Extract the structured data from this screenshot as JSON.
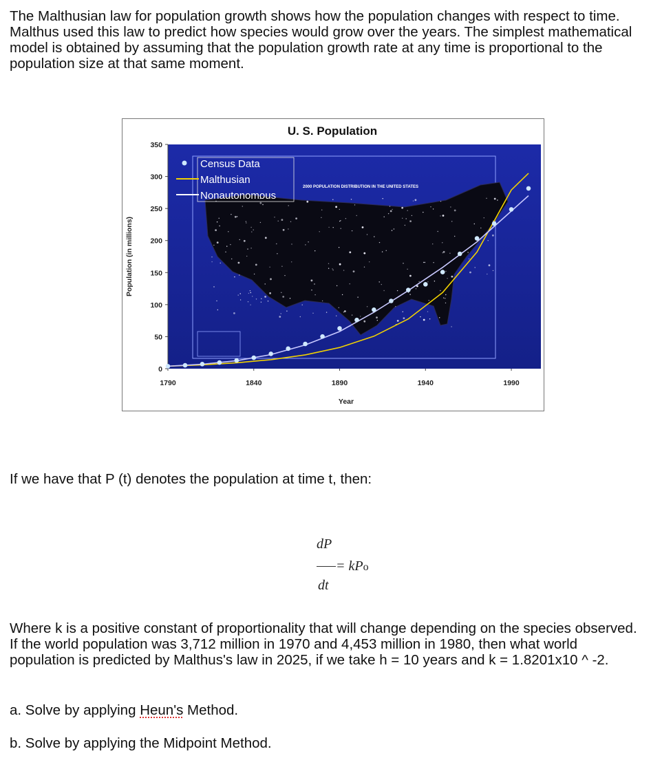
{
  "intro_text": "The Malthusian law for population growth shows how the population changes with respect to time. Malthus used this law to predict how species would grow over the years. The simplest mathematical model is obtained by assuming that the population growth rate at any time is proportional to the population size at that same moment.",
  "chart_data": {
    "type": "line",
    "title": "U. S. Population",
    "xlabel": "Year",
    "ylabel": "Population (in millions)",
    "xlim": [
      1790,
      2000
    ],
    "ylim": [
      0,
      350
    ],
    "x_ticks": [
      "1790",
      "1840",
      "1890",
      "1940",
      "1990"
    ],
    "y_ticks": [
      "0",
      "50",
      "100",
      "150",
      "200",
      "250",
      "300",
      "350"
    ],
    "legend": [
      "Census Data",
      "Malthusian",
      "Nonautonomous"
    ],
    "legend_position": "top-left",
    "background_caption": "2000 POPULATION DISTRIBUTION IN THE UNITED STATES",
    "series": [
      {
        "name": "Census Data",
        "style": "points",
        "color": "#cfe8ff",
        "x": [
          1790,
          1800,
          1810,
          1820,
          1830,
          1840,
          1850,
          1860,
          1870,
          1880,
          1890,
          1900,
          1910,
          1920,
          1930,
          1940,
          1950,
          1960,
          1970,
          1980,
          1990,
          2000
        ],
        "y": [
          3.9,
          5.3,
          7.2,
          9.6,
          12.9,
          17.1,
          23.2,
          31.4,
          38.6,
          50.2,
          62.9,
          76.0,
          92.0,
          105.7,
          122.8,
          131.7,
          150.7,
          179.3,
          203.3,
          226.5,
          248.7,
          281.4
        ]
      },
      {
        "name": "Malthusian",
        "style": "line",
        "color": "#f2d200",
        "x": [
          1790,
          1810,
          1830,
          1850,
          1870,
          1890,
          1910,
          1930,
          1950,
          1970,
          1990,
          2000
        ],
        "y": [
          3.9,
          6.0,
          9.2,
          14.1,
          21.6,
          33.1,
          50.7,
          77.6,
          118.9,
          182.1,
          278.9,
          305.0
        ]
      },
      {
        "name": "Nonautonomous",
        "style": "line",
        "color": "#c9c9ff",
        "x": [
          1790,
          1810,
          1830,
          1850,
          1870,
          1890,
          1910,
          1930,
          1950,
          1970,
          1990,
          2000
        ],
        "y": [
          3.9,
          7.0,
          12.5,
          22.0,
          37.0,
          58.0,
          88.0,
          122.0,
          158.0,
          198.0,
          246.0,
          270.0
        ]
      }
    ]
  },
  "definition_text": "If we have that P (t) denotes the population at time t, then:",
  "formula": {
    "numerator": "dP",
    "rhs": "= kP",
    "subscript": "o",
    "denominator": "dt"
  },
  "where_text": "Where k is a positive constant of proportionality that will change depending on the species observed. If the world population was 3,712 million in 1970 and 4,453 million in 1980, then what world population is predicted by Malthus's law in 2025, if we take h = 10 years and k = 1.8201x10 ^ -2.",
  "item_a": {
    "prefix": "a. Solve by applying ",
    "name": "Heun's",
    "suffix": " Method."
  },
  "item_b": "b. Solve by applying the Midpoint Method."
}
